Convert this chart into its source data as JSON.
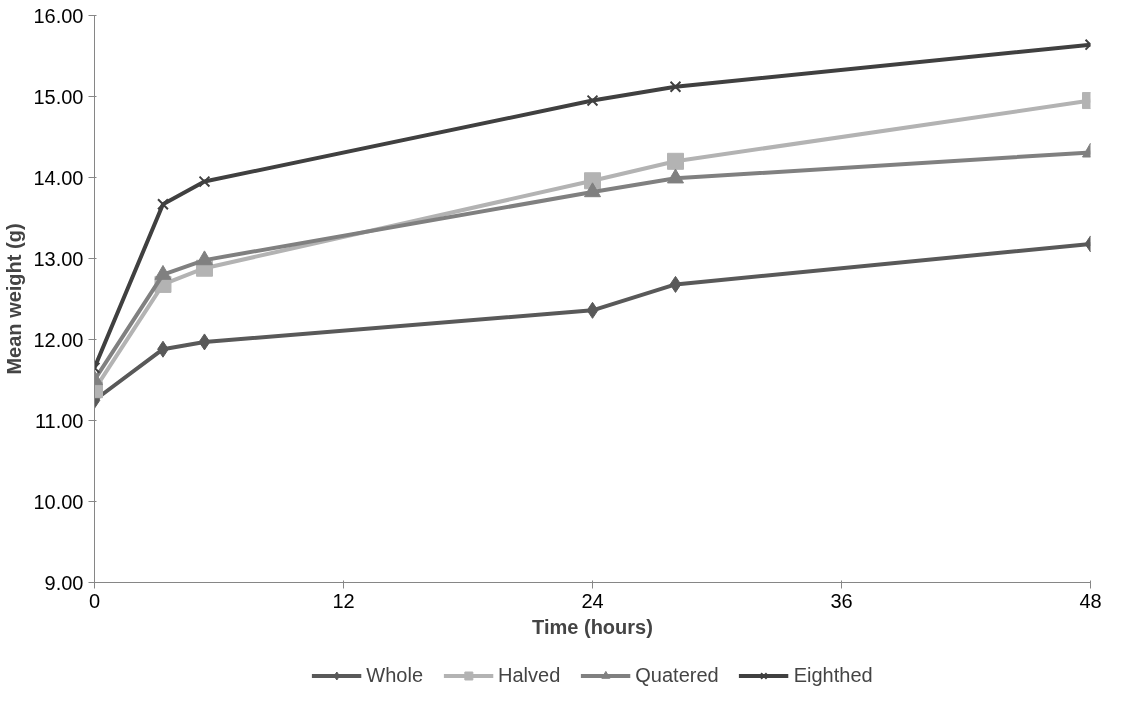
{
  "chart_data": {
    "type": "line",
    "xlabel": "Time (hours)",
    "ylabel": "Mean weight (g)",
    "xlim": [
      0,
      48
    ],
    "xticks": [
      0,
      12,
      24,
      36,
      48
    ],
    "ylim": [
      9,
      16
    ],
    "yticks": [
      {
        "value": 9,
        "label": "9.00"
      },
      {
        "value": 10,
        "label": "10.00"
      },
      {
        "value": 11,
        "label": "11.00"
      },
      {
        "value": 12,
        "label": "12.00"
      },
      {
        "value": 13,
        "label": "13.00"
      },
      {
        "value": 14,
        "label": "14.00"
      },
      {
        "value": 15,
        "label": "15.00"
      },
      {
        "value": 16,
        "label": "16.00"
      }
    ],
    "x": [
      0,
      3.3,
      5.3,
      24,
      28,
      48
    ],
    "grid": false,
    "legend": "bottom",
    "line_style": "solid",
    "series": [
      {
        "name": "Whole",
        "color": "#595959",
        "marker": "diamond",
        "values": [
          11.25,
          11.88,
          11.97,
          12.36,
          12.68,
          13.18
        ]
      },
      {
        "name": "Halved",
        "color": "#b3b3b3",
        "marker": "square",
        "values": [
          11.38,
          12.68,
          12.88,
          13.96,
          14.2,
          14.95
        ]
      },
      {
        "name": "Quatered",
        "color": "#808080",
        "marker": "triangle",
        "values": [
          11.5,
          12.8,
          12.98,
          13.82,
          13.99,
          14.31
        ]
      },
      {
        "name": "Eighthed",
        "color": "#404040",
        "marker": "cross",
        "values": [
          11.65,
          13.67,
          13.95,
          14.95,
          15.12,
          15.64
        ]
      }
    ]
  }
}
